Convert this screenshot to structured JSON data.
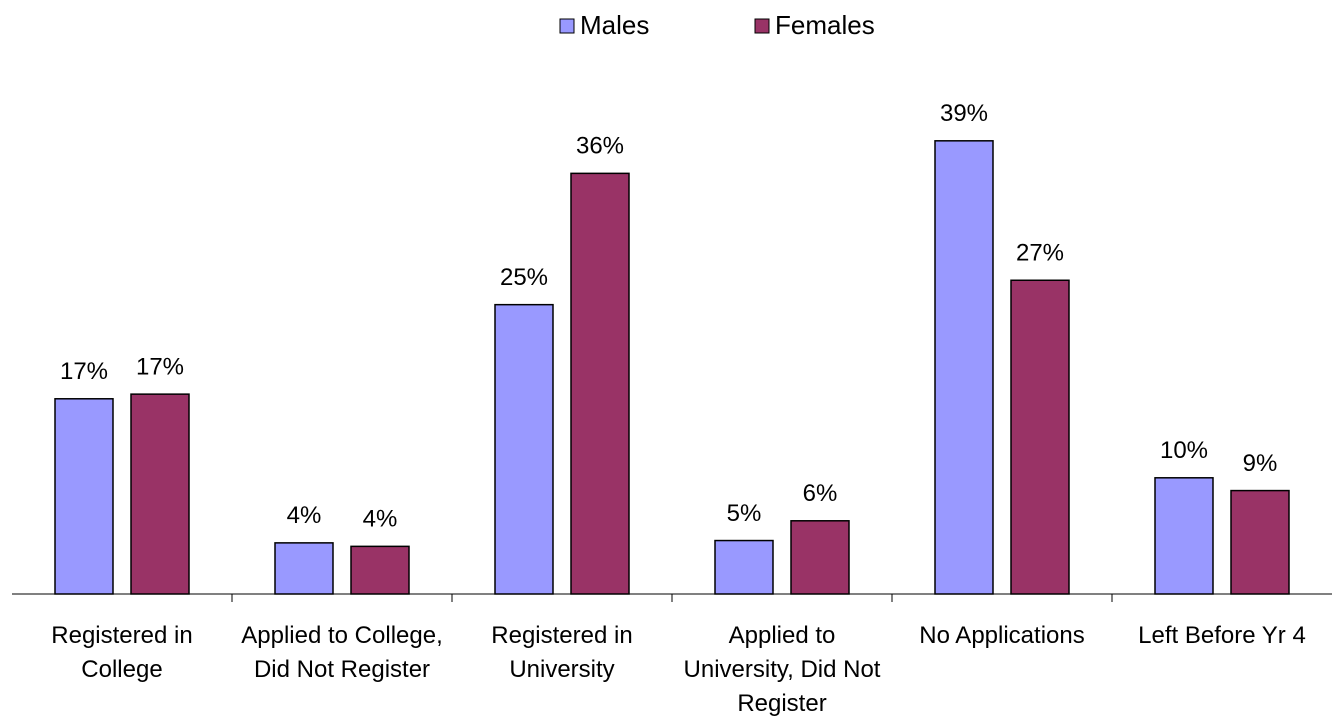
{
  "chart_data": {
    "type": "bar",
    "categories": [
      "Registered in College",
      "Applied to College, Did Not Register",
      "Registered in University",
      "Applied to University, Did Not Register",
      "No Applications",
      "Left Before Yr 4"
    ],
    "series": [
      {
        "name": "Males",
        "color": "#9999ff",
        "values": [
          16.8,
          4.4,
          24.9,
          4.6,
          39.0,
          10.0
        ],
        "value_labels": [
          "17%",
          "4%",
          "25%",
          "5%",
          "39%",
          "10%"
        ]
      },
      {
        "name": "Females",
        "color": "#993366",
        "values": [
          17.2,
          4.1,
          36.2,
          6.3,
          27.0,
          8.9
        ],
        "value_labels": [
          "17%",
          "4%",
          "36%",
          "6%",
          "27%",
          "9%"
        ]
      }
    ],
    "legend": "top"
  }
}
